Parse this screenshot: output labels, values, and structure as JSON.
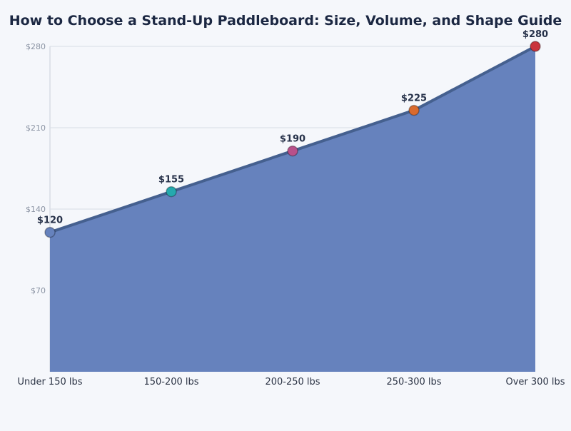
{
  "chart_data": {
    "type": "area",
    "title": "How to Choose a Stand-Up Paddleboard: Size, Volume, and Shape Guide",
    "xlabel": "",
    "ylabel": "",
    "categories": [
      "Under 150 lbs",
      "150-200 lbs",
      "200-250 lbs",
      "250-300 lbs",
      "Over 300 lbs"
    ],
    "values": [
      120,
      155,
      190,
      225,
      280
    ],
    "data_labels": [
      "$120",
      "$155",
      "$190",
      "$225",
      "$280"
    ],
    "ylim": [
      0,
      280
    ],
    "yticks": [
      70,
      140,
      210,
      280
    ],
    "ytick_labels": [
      "$70",
      "$140",
      "$210",
      "$280"
    ],
    "grid": true,
    "legend": "none",
    "colors": {
      "fill": "#6682bd",
      "line": "#45608f",
      "points": [
        "#6682bd",
        "#25a9ae",
        "#b8508a",
        "#d96a2e",
        "#c9343b"
      ]
    }
  }
}
